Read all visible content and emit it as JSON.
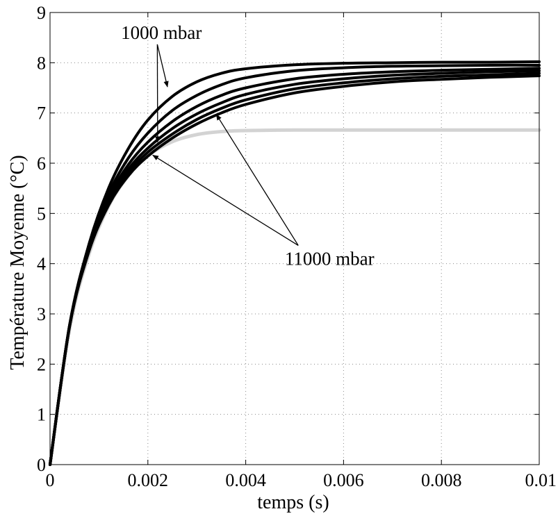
{
  "chart_data": {
    "type": "line",
    "xlabel": "temps (s)",
    "ylabel": "Température Moyenne (°C)",
    "xlim": [
      0,
      0.01
    ],
    "ylim": [
      0,
      9
    ],
    "xticks": [
      0,
      0.002,
      0.004,
      0.006,
      0.008,
      0.01
    ],
    "xtick_labels": [
      "0",
      "0.002",
      "0.004",
      "0.006",
      "0.008",
      "0.01"
    ],
    "yticks": [
      0,
      1,
      2,
      3,
      4,
      5,
      6,
      7,
      8,
      9
    ],
    "ytick_labels": [
      "0",
      "1",
      "2",
      "3",
      "4",
      "5",
      "6",
      "7",
      "8",
      "9"
    ],
    "grid": true,
    "legend": "none",
    "series": [
      {
        "color": "#000000",
        "x": [
          0,
          0.0004,
          0.0008,
          0.0012,
          0.0016,
          0.002,
          0.0025,
          0.003,
          0.0035,
          0.004,
          0.005,
          0.006,
          0.007,
          0.008,
          0.009,
          0.01
        ],
        "y": [
          0,
          2.78,
          4.4,
          5.51,
          6.29,
          6.86,
          7.33,
          7.62,
          7.79,
          7.88,
          7.96,
          7.99,
          8.0,
          8.01,
          8.01,
          8.02
        ]
      },
      {
        "color": "#000000",
        "x": [
          0,
          0.0004,
          0.0008,
          0.0012,
          0.0016,
          0.002,
          0.0025,
          0.003,
          0.0035,
          0.004,
          0.005,
          0.006,
          0.007,
          0.008,
          0.009,
          0.01
        ],
        "y": [
          0,
          2.77,
          4.36,
          5.4,
          6.1,
          6.6,
          7.05,
          7.35,
          7.56,
          7.7,
          7.84,
          7.9,
          7.93,
          7.94,
          7.95,
          7.95
        ]
      },
      {
        "color": "#000000",
        "x": [
          0,
          0.0004,
          0.0008,
          0.0012,
          0.0016,
          0.002,
          0.0025,
          0.003,
          0.0035,
          0.004,
          0.005,
          0.006,
          0.007,
          0.008,
          0.009,
          0.01
        ],
        "y": [
          0,
          2.77,
          4.33,
          5.32,
          5.97,
          6.42,
          6.83,
          7.13,
          7.35,
          7.5,
          7.68,
          7.77,
          7.82,
          7.85,
          7.87,
          7.89
        ]
      },
      {
        "color": "#000000",
        "x": [
          0,
          0.0004,
          0.0008,
          0.0012,
          0.0016,
          0.002,
          0.0025,
          0.003,
          0.0035,
          0.004,
          0.005,
          0.006,
          0.007,
          0.008,
          0.009,
          0.01
        ],
        "y": [
          0,
          2.76,
          4.3,
          5.26,
          5.88,
          6.3,
          6.69,
          6.98,
          7.2,
          7.37,
          7.57,
          7.68,
          7.75,
          7.79,
          7.82,
          7.84
        ]
      },
      {
        "color": "#000000",
        "x": [
          0,
          0.0004,
          0.0008,
          0.0012,
          0.0016,
          0.002,
          0.0025,
          0.003,
          0.0035,
          0.004,
          0.005,
          0.006,
          0.007,
          0.008,
          0.009,
          0.01
        ],
        "y": [
          0,
          2.76,
          4.28,
          5.21,
          5.81,
          6.22,
          6.58,
          6.87,
          7.09,
          7.26,
          7.48,
          7.6,
          7.68,
          7.73,
          7.76,
          7.79
        ]
      },
      {
        "color": "#000000",
        "x": [
          0,
          0.0004,
          0.0008,
          0.0012,
          0.0016,
          0.002,
          0.0025,
          0.003,
          0.0035,
          0.004,
          0.005,
          0.006,
          0.007,
          0.008,
          0.009,
          0.01
        ],
        "y": [
          0,
          2.75,
          4.26,
          5.17,
          5.75,
          6.14,
          6.5,
          6.78,
          7.0,
          7.17,
          7.4,
          7.53,
          7.62,
          7.67,
          7.71,
          7.74
        ]
      },
      {
        "color": "#d3d3d3",
        "x": [
          0,
          0.0004,
          0.0008,
          0.0012,
          0.0016,
          0.002,
          0.0025,
          0.003,
          0.0035,
          0.004,
          0.005,
          0.006,
          0.007,
          0.008,
          0.009,
          0.01
        ],
        "y": [
          0,
          2.7,
          4.2,
          5.15,
          5.75,
          6.15,
          6.43,
          6.57,
          6.63,
          6.65,
          6.66,
          6.66,
          6.66,
          6.66,
          6.66,
          6.66
        ]
      }
    ],
    "annotations": [
      {
        "text": "1000 mbar",
        "anchor": [
          0.00145,
          8.6
        ],
        "arrows_to": [
          [
            0.0024,
            7.52
          ],
          [
            0.0022,
            6.42
          ]
        ]
      },
      {
        "text": "11000 mbar",
        "anchor": [
          0.0048,
          4.1
        ],
        "arrows_to": [
          [
            0.0034,
            6.97
          ],
          [
            0.0021,
            6.16
          ]
        ]
      }
    ]
  }
}
